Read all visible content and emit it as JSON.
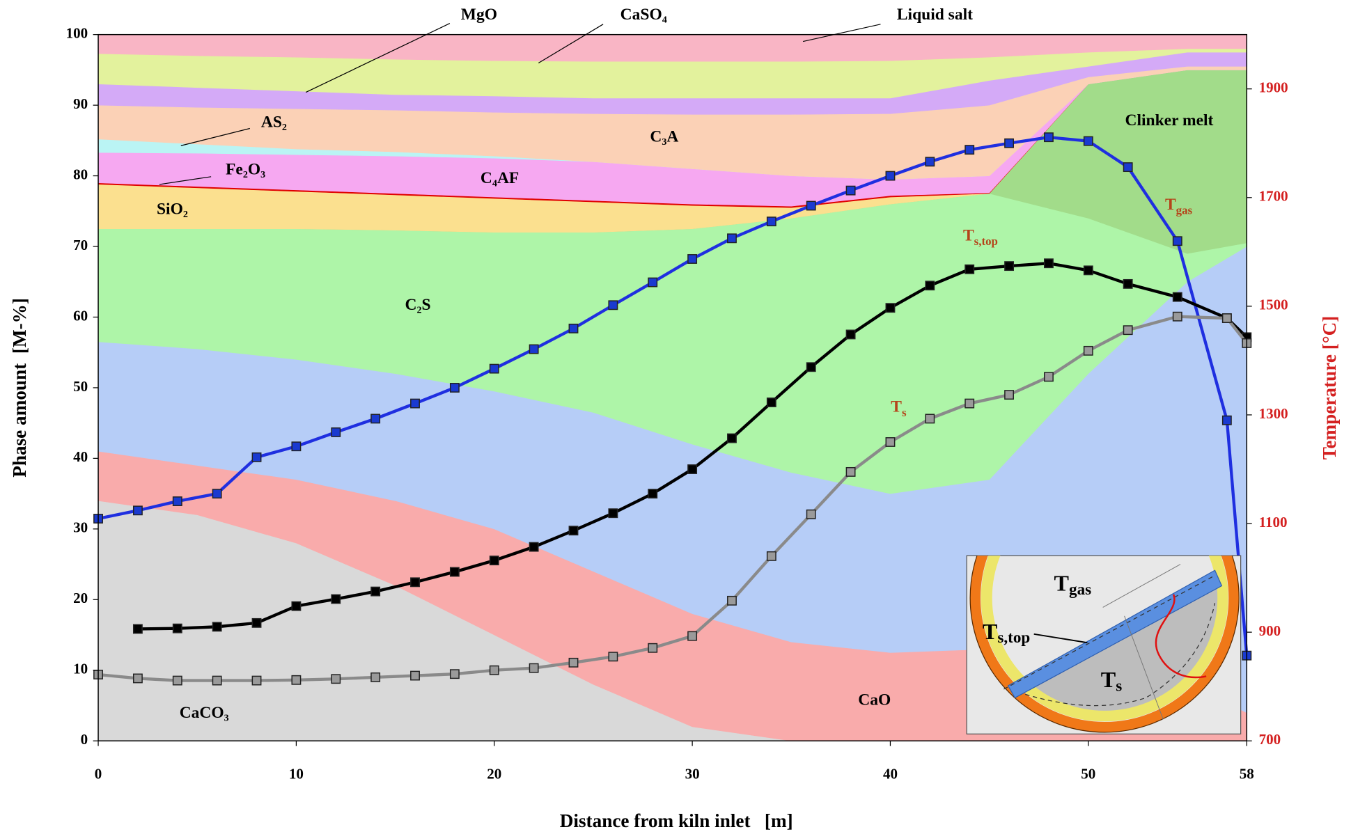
{
  "chart_data": {
    "type": "area",
    "xlabel": "Distance from kiln inlet   [m]",
    "ylabel": "Phase amount  [M-%]",
    "y2label": "Temperature [°C]",
    "xlim": [
      0,
      58
    ],
    "xticks": [
      0,
      10,
      20,
      30,
      40,
      50,
      58
    ],
    "ylim": [
      0,
      100
    ],
    "yticks": [
      0,
      10,
      20,
      30,
      40,
      50,
      60,
      70,
      80,
      90,
      100
    ],
    "y2lim": [
      700,
      2000
    ],
    "y2ticks": [
      700,
      900,
      1100,
      1300,
      1500,
      1700,
      1900
    ],
    "y2color": "#d42020",
    "series": [
      {
        "name": "CaCO₃",
        "type": "area",
        "color": "#d9d9d9",
        "x": [
          0,
          5,
          10,
          15,
          20,
          25,
          30,
          35,
          40,
          45,
          50,
          55,
          58
        ],
        "values": [
          34,
          32,
          28,
          22,
          15,
          8,
          2,
          0,
          0,
          0,
          0,
          0,
          0
        ]
      },
      {
        "name": "CaO",
        "type": "area",
        "color": "#f9abab",
        "x": [
          0,
          5,
          10,
          15,
          20,
          25,
          30,
          35,
          40,
          45,
          50,
          55,
          58
        ],
        "values": [
          7,
          7,
          9,
          12,
          15,
          16,
          16,
          14,
          12.5,
          13,
          14,
          8,
          4
        ]
      },
      {
        "name": null,
        "type": "area",
        "color": "#b6cdf7",
        "x": [
          0,
          5,
          10,
          15,
          20,
          25,
          30,
          35,
          40,
          45,
          50,
          55,
          58
        ],
        "values": [
          15.5,
          16.5,
          17,
          18,
          19.5,
          22.5,
          24,
          24,
          22.5,
          24,
          38,
          57,
          66
        ]
      },
      {
        "name": "C₂S",
        "type": "area",
        "color": "#aef5a8",
        "x": [
          0,
          5,
          10,
          15,
          20,
          25,
          30,
          35,
          40,
          45,
          50,
          55,
          58
        ],
        "values": [
          16,
          17,
          18.5,
          20.3,
          22.5,
          25.5,
          30.5,
          36,
          41,
          40.5,
          22,
          4,
          0.5
        ]
      },
      {
        "name": "Clinker melt",
        "type": "area",
        "color": "#a2dc8a",
        "x": [
          0,
          5,
          10,
          15,
          20,
          25,
          30,
          35,
          40,
          45,
          50,
          55,
          58
        ],
        "values": [
          0,
          0,
          0,
          0,
          0,
          0,
          0,
          0,
          0,
          0,
          19,
          26,
          24.5
        ]
      },
      {
        "name": "SiO₂",
        "type": "area",
        "color": "#fbe08f",
        "x": [
          0,
          5,
          10,
          15,
          20,
          25,
          30,
          35,
          40,
          45,
          50,
          55,
          58
        ],
        "values": [
          6.3,
          5.8,
          5.3,
          5,
          4.8,
          4.3,
          3.3,
          1.5,
          1,
          0,
          0,
          0,
          0
        ]
      },
      {
        "name": "Fe₂O₃",
        "type": "area",
        "color": "#e00000",
        "x": [
          0,
          5,
          10,
          15,
          20,
          25,
          30,
          35,
          40,
          45,
          50,
          55,
          58
        ],
        "values": [
          0.2,
          0.2,
          0.2,
          0.2,
          0.2,
          0.2,
          0.2,
          0.2,
          0.2,
          0.1,
          0,
          0,
          0
        ]
      },
      {
        "name": "C₄AF",
        "type": "area",
        "color": "#f6a8f1",
        "x": [
          0,
          5,
          10,
          15,
          20,
          25,
          30,
          35,
          40,
          45,
          50,
          55,
          58
        ],
        "values": [
          4.3,
          4.7,
          5,
          5.3,
          5.5,
          5.5,
          5,
          4.3,
          2.3,
          2.4,
          0,
          0,
          0
        ]
      },
      {
        "name": "AS₂",
        "type": "area",
        "color": "#baf4f4",
        "x": [
          0,
          5,
          10,
          15,
          20,
          25,
          30,
          35,
          40,
          45,
          50,
          55,
          58
        ],
        "values": [
          1.9,
          1.3,
          0.8,
          0.6,
          0.3,
          0,
          0,
          0,
          0,
          0,
          0,
          0,
          0
        ]
      },
      {
        "name": "C₃A",
        "type": "area",
        "color": "#fbd1b6",
        "x": [
          0,
          5,
          10,
          15,
          20,
          25,
          30,
          35,
          40,
          45,
          50,
          55,
          58
        ],
        "values": [
          4.8,
          5.2,
          5.7,
          5.9,
          6.2,
          6.8,
          7.7,
          8.7,
          9.3,
          10,
          1,
          0.5,
          0.5
        ]
      },
      {
        "name": "MgO",
        "type": "area",
        "color": "#d4aaf7",
        "x": [
          0,
          5,
          10,
          15,
          20,
          25,
          30,
          35,
          40,
          45,
          50,
          55,
          58
        ],
        "values": [
          3,
          2.8,
          2.5,
          2.2,
          2.3,
          2.2,
          2.3,
          2.3,
          2.2,
          3.5,
          1.5,
          2,
          2
        ]
      },
      {
        "name": "CaSO₄",
        "type": "area",
        "color": "#e3f29d",
        "x": [
          0,
          5,
          10,
          15,
          20,
          25,
          30,
          35,
          40,
          45,
          50,
          55,
          58
        ],
        "values": [
          4.3,
          4.5,
          4.8,
          5,
          5,
          5.2,
          5.2,
          5.2,
          5.3,
          3.3,
          2,
          0.5,
          0.5
        ]
      },
      {
        "name": "Liquid salt",
        "type": "area",
        "color": "#f9b5c5",
        "x": [
          0,
          5,
          10,
          15,
          20,
          25,
          30,
          35,
          40,
          45,
          50,
          55,
          58
        ],
        "values": [
          2.7,
          3,
          3.2,
          3.5,
          3.7,
          3.8,
          3.8,
          3.8,
          3.7,
          3.2,
          2.5,
          2,
          2
        ]
      },
      {
        "name": [
          "T",
          "gas"
        ],
        "type": "line",
        "axis": "y2",
        "color": "#1f2fe0",
        "marker_color": "#1a3ad0",
        "label_color": "#b5441a",
        "x": [
          0,
          2,
          4,
          6,
          8,
          10,
          12,
          14,
          16,
          18,
          20,
          22,
          24,
          26,
          28,
          30,
          32,
          34,
          36,
          38,
          40,
          42,
          44,
          46,
          48,
          50,
          52,
          54.5,
          57,
          58
        ],
        "values": [
          1109,
          1124,
          1141,
          1155,
          1222,
          1242,
          1268,
          1293,
          1321,
          1350,
          1385,
          1421,
          1459,
          1502,
          1544,
          1587,
          1625,
          1656,
          1685,
          1713,
          1740,
          1766,
          1788,
          1800,
          1811,
          1804,
          1756,
          1620,
          1290,
          857
        ]
      },
      {
        "name": [
          "T",
          "s,top"
        ],
        "type": "line",
        "axis": "y2",
        "color": "#000000",
        "marker_color": "#000000",
        "label_color": "#b5441a",
        "x": [
          0,
          2,
          4,
          6,
          8,
          10,
          12,
          14,
          16,
          18,
          20,
          22,
          24,
          26,
          28,
          30,
          32,
          34,
          36,
          38,
          40,
          42,
          44,
          46,
          48,
          50,
          52,
          54.5,
          57,
          58
        ],
        "values": [
          null,
          906,
          907,
          910,
          917,
          948,
          961,
          975,
          992,
          1011,
          1032,
          1057,
          1087,
          1119,
          1155,
          1200,
          1257,
          1323,
          1388,
          1448,
          1497,
          1538,
          1568,
          1574,
          1579,
          1566,
          1541,
          1517,
          1478,
          1443
        ]
      },
      {
        "name": [
          "T",
          "s"
        ],
        "type": "line",
        "axis": "y2",
        "color": "#8a8a8a",
        "marker_color": "#9a9a9a",
        "label_color": "#b5441a",
        "x": [
          0,
          2,
          4,
          6,
          8,
          10,
          12,
          14,
          16,
          18,
          20,
          22,
          24,
          26,
          28,
          30,
          32,
          34,
          36,
          38,
          40,
          42,
          44,
          46,
          48,
          50,
          52,
          54.5,
          57,
          58
        ],
        "values": [
          822,
          815,
          811,
          811,
          811,
          812,
          814,
          817,
          820,
          823,
          830,
          834,
          844,
          855,
          871,
          893,
          958,
          1040,
          1117,
          1195,
          1250,
          1293,
          1321,
          1337,
          1370,
          1418,
          1456,
          1481,
          1478,
          1432
        ]
      }
    ],
    "inset": {
      "labels": [
        [
          "T",
          "gas"
        ],
        [
          "T",
          "s,top"
        ],
        [
          "T",
          "s"
        ]
      ]
    }
  }
}
